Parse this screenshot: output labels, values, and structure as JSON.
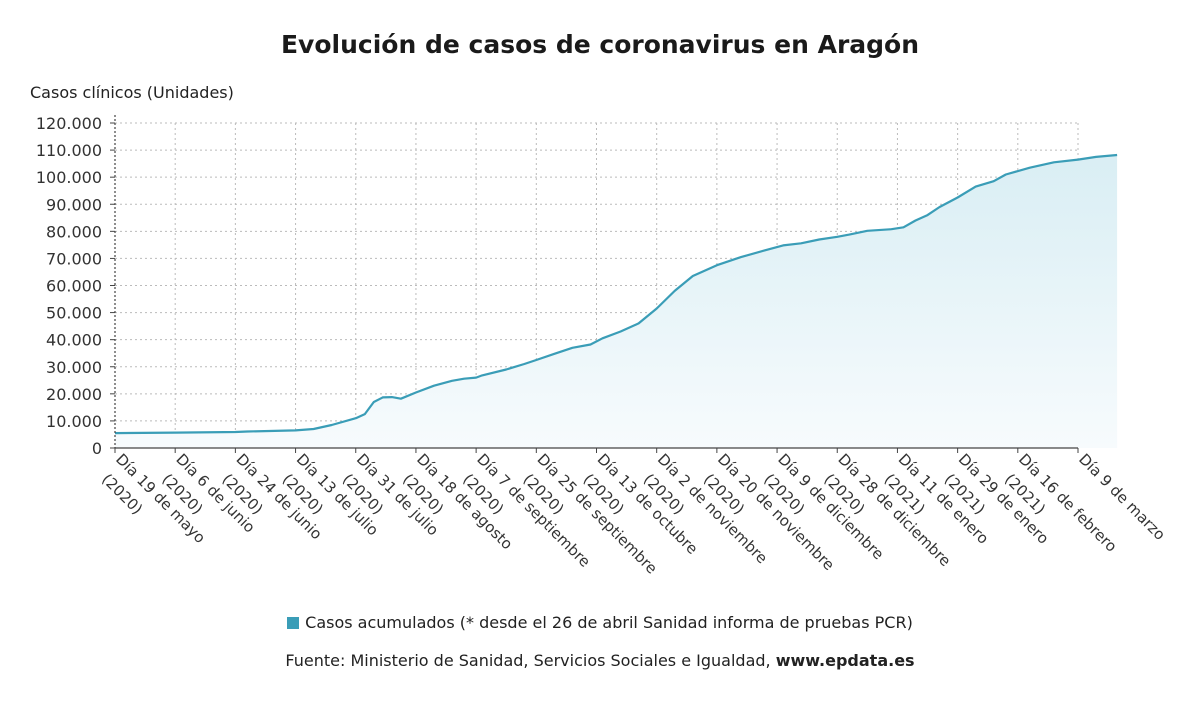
{
  "chart_data": {
    "type": "area",
    "title": "Evolución de casos de coronavirus en Aragón",
    "ylabel": "Casos clínicos (Unidades)",
    "xlabel": "",
    "ylim": [
      0,
      120000
    ],
    "yticks": [
      "0",
      "10.000",
      "20.000",
      "30.000",
      "40.000",
      "50.000",
      "60.000",
      "70.000",
      "80.000",
      "90.000",
      "100.000",
      "110.000",
      "120.000"
    ],
    "grid": true,
    "legend_position": "bottom",
    "colors": {
      "line": "#3a9db7",
      "fill_top": "#d9eef4",
      "fill_bottom": "#f7fbfd",
      "grid": "#bbbbbb"
    },
    "categories": [
      {
        "line1": "Día 19 de mayo",
        "line2": "(2020)"
      },
      {
        "line1": "Día 6 de junio",
        "line2": "(2020)"
      },
      {
        "line1": "Día 24 de junio",
        "line2": "(2020)"
      },
      {
        "line1": "Día 13 de julio",
        "line2": "(2020)"
      },
      {
        "line1": "Día 31 de julio",
        "line2": "(2020)"
      },
      {
        "line1": "Día 18 de agosto",
        "line2": "(2020)"
      },
      {
        "line1": "Día 7 de septiembre",
        "line2": "(2020)"
      },
      {
        "line1": "Día 25 de septiembre",
        "line2": "(2020)"
      },
      {
        "line1": "Día 13 de octubre",
        "line2": "(2020)"
      },
      {
        "line1": "Día 2 de noviembre",
        "line2": "(2020)"
      },
      {
        "line1": "Día 20 de noviembre",
        "line2": "(2020)"
      },
      {
        "line1": "Día 9 de diciembre",
        "line2": "(2020)"
      },
      {
        "line1": "Día 28 de diciembre",
        "line2": "(2020)"
      },
      {
        "line1": "Día 11 de enero",
        "line2": "(2021)"
      },
      {
        "line1": "Día 29 de enero",
        "line2": "(2021)"
      },
      {
        "line1": "Día 16 de febrero",
        "line2": "(2021)"
      },
      {
        "line1": "Día 9 de marzo",
        "line2": ""
      }
    ],
    "series": [
      {
        "name": "Casos acumulados (* desde el 26 de abril Sanidad informa de pruebas PCR)",
        "points": [
          [
            0,
            5500
          ],
          [
            1,
            5700
          ],
          [
            2,
            5900
          ],
          [
            2.2,
            6100
          ],
          [
            3,
            6500
          ],
          [
            3.3,
            7000
          ],
          [
            3.6,
            8500
          ],
          [
            4,
            11000
          ],
          [
            4.15,
            12500
          ],
          [
            4.3,
            17000
          ],
          [
            4.45,
            18700
          ],
          [
            4.6,
            18800
          ],
          [
            4.75,
            18200
          ],
          [
            5,
            20500
          ],
          [
            5.3,
            23000
          ],
          [
            5.6,
            24800
          ],
          [
            5.8,
            25600
          ],
          [
            6,
            26000
          ],
          [
            6.1,
            26800
          ],
          [
            6.5,
            29000
          ],
          [
            6.8,
            31000
          ],
          [
            7,
            32500
          ],
          [
            7.3,
            34800
          ],
          [
            7.6,
            37000
          ],
          [
            7.9,
            38200
          ],
          [
            8.1,
            40500
          ],
          [
            8.4,
            43000
          ],
          [
            8.7,
            46000
          ],
          [
            9.0,
            51500
          ],
          [
            9.3,
            58000
          ],
          [
            9.6,
            63500
          ],
          [
            10,
            67500
          ],
          [
            10.4,
            70500
          ],
          [
            10.8,
            73000
          ],
          [
            11.1,
            74800
          ],
          [
            11.4,
            75600
          ],
          [
            11.7,
            77000
          ],
          [
            12,
            78000
          ],
          [
            12.2,
            78800
          ],
          [
            12.5,
            80200
          ],
          [
            12.9,
            80800
          ],
          [
            13.1,
            81500
          ],
          [
            13.3,
            84000
          ],
          [
            13.5,
            86000
          ],
          [
            13.7,
            89000
          ],
          [
            14,
            92500
          ],
          [
            14.3,
            96500
          ],
          [
            14.6,
            98500
          ],
          [
            14.8,
            101000
          ],
          [
            15.2,
            103500
          ],
          [
            15.6,
            105500
          ],
          [
            16,
            106500
          ],
          [
            16.3,
            107500
          ],
          [
            16.65,
            108200
          ]
        ]
      }
    ]
  },
  "legend": {
    "label": "Casos acumulados (* desde el 26 de abril Sanidad informa de pruebas PCR)"
  },
  "source": {
    "prefix": "Fuente: Ministerio de Sanidad, Servicios Sociales e Igualdad, ",
    "url": "www.epdata.es"
  }
}
